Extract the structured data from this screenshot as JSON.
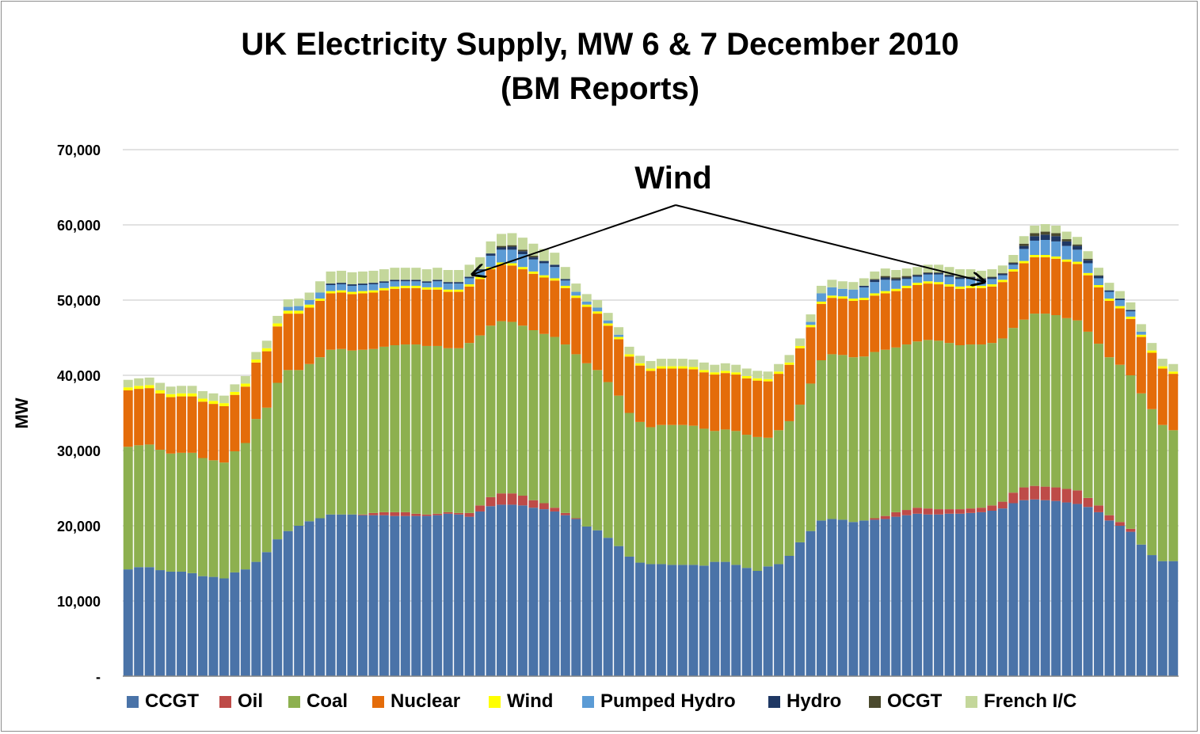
{
  "chart_data": {
    "type": "bar",
    "stacked": true,
    "title": "UK Electricity Supply, MW 6 & 7 December 2010",
    "subtitle": "(BM Reports)",
    "xlabel": "",
    "ylabel": "MW",
    "ylim": [
      0,
      70000
    ],
    "yticks": [
      {
        "value": 0,
        "label": "-"
      },
      {
        "value": 10000,
        "label": "10,000"
      },
      {
        "value": 20000,
        "label": "20,000"
      },
      {
        "value": 30000,
        "label": "30,000"
      },
      {
        "value": 40000,
        "label": "40,000"
      },
      {
        "value": 50000,
        "label": "50,000"
      },
      {
        "value": 60000,
        "label": "60,000"
      },
      {
        "value": 70000,
        "label": "70,000"
      }
    ],
    "grid": true,
    "legend_position": "bottom",
    "annotation": {
      "text": "Wind",
      "targets": [
        33,
        81
      ]
    },
    "series": [
      {
        "name": "CCGT",
        "color": "#4a73a8",
        "values": [
          14200,
          14500,
          14500,
          14100,
          13900,
          13900,
          13700,
          13300,
          13200,
          13000,
          13800,
          14200,
          15200,
          16500,
          18200,
          19300,
          20000,
          20600,
          21000,
          21500,
          21500,
          21500,
          21400,
          21400,
          21400,
          21300,
          21300,
          21300,
          21300,
          21400,
          21600,
          21500,
          21200,
          21900,
          22600,
          22800,
          22800,
          22700,
          22400,
          22200,
          21900,
          21400,
          20900,
          19900,
          19400,
          18400,
          17300,
          15900,
          15100,
          14900,
          14900,
          14800,
          14800,
          14800,
          14700,
          15200,
          15200,
          14800,
          14400,
          14000,
          14600,
          14900,
          16000,
          17800,
          19300,
          20700,
          20900,
          20800,
          20500,
          20700,
          20800,
          20900,
          21200,
          21400,
          21600,
          21500,
          21500,
          21600,
          21600,
          21700,
          21800,
          22000,
          22300,
          23000,
          23400,
          23500,
          23400,
          23300,
          23100,
          22900,
          22500,
          21800,
          20700,
          20000,
          19200,
          17500,
          16100,
          15300,
          15300
        ]
      },
      {
        "name": "Oil",
        "color": "#be4b48",
        "values": [
          0,
          0,
          0,
          0,
          0,
          0,
          0,
          0,
          0,
          0,
          0,
          0,
          0,
          0,
          0,
          0,
          0,
          0,
          0,
          0,
          0,
          0,
          100,
          300,
          400,
          500,
          500,
          300,
          200,
          200,
          200,
          200,
          500,
          800,
          1200,
          1500,
          1500,
          1300,
          1000,
          800,
          500,
          300,
          100,
          0,
          0,
          0,
          0,
          0,
          0,
          0,
          0,
          0,
          0,
          0,
          0,
          0,
          0,
          0,
          0,
          0,
          0,
          0,
          0,
          0,
          0,
          0,
          0,
          0,
          0,
          0,
          200,
          400,
          600,
          700,
          800,
          800,
          700,
          600,
          600,
          600,
          600,
          700,
          900,
          1400,
          1700,
          1800,
          1800,
          1800,
          1800,
          1800,
          1200,
          900,
          700,
          500,
          400,
          0,
          0,
          0,
          0
        ]
      },
      {
        "name": "Coal",
        "color": "#8db04f",
        "values": [
          16300,
          16200,
          16300,
          16000,
          15700,
          15800,
          16000,
          15700,
          15500,
          15400,
          16100,
          16800,
          19000,
          19200,
          20800,
          21400,
          20700,
          20900,
          21400,
          21900,
          22000,
          21800,
          21900,
          21800,
          22000,
          22200,
          22300,
          22500,
          22400,
          22300,
          21800,
          21900,
          22600,
          22600,
          22800,
          22900,
          22800,
          22600,
          22600,
          22500,
          22700,
          22400,
          21800,
          21700,
          21300,
          20700,
          20000,
          19100,
          18700,
          18200,
          18500,
          18600,
          18600,
          18500,
          18200,
          17400,
          17600,
          17800,
          17700,
          17800,
          17100,
          17800,
          17900,
          18300,
          19600,
          21300,
          21900,
          21900,
          21900,
          21800,
          22100,
          22100,
          21900,
          22000,
          22100,
          22400,
          22400,
          22100,
          21800,
          21800,
          21700,
          21600,
          21700,
          21900,
          22300,
          22900,
          23000,
          22900,
          22700,
          22600,
          22100,
          21500,
          21000,
          20900,
          20400,
          20100,
          19400,
          18100,
          17400
        ]
      },
      {
        "name": "Nuclear",
        "color": "#e46c0a",
        "values": [
          7500,
          7500,
          7500,
          7500,
          7500,
          7500,
          7500,
          7500,
          7500,
          7500,
          7500,
          7500,
          7500,
          7500,
          7500,
          7500,
          7500,
          7500,
          7500,
          7500,
          7500,
          7500,
          7500,
          7500,
          7500,
          7500,
          7500,
          7500,
          7500,
          7500,
          7500,
          7500,
          7500,
          7500,
          7500,
          7500,
          7500,
          7500,
          7500,
          7500,
          7500,
          7500,
          7500,
          7500,
          7500,
          7500,
          7500,
          7500,
          7500,
          7500,
          7500,
          7500,
          7500,
          7500,
          7500,
          7500,
          7500,
          7500,
          7500,
          7500,
          7500,
          7500,
          7500,
          7500,
          7500,
          7500,
          7500,
          7500,
          7500,
          7500,
          7500,
          7500,
          7500,
          7500,
          7500,
          7500,
          7500,
          7500,
          7500,
          7500,
          7500,
          7500,
          7500,
          7500,
          7500,
          7500,
          7500,
          7500,
          7500,
          7500,
          7500,
          7500,
          7500,
          7500,
          7500,
          7500,
          7500,
          7500,
          7500
        ]
      },
      {
        "name": "Wind",
        "color": "#ffff00",
        "values": [
          400,
          400,
          400,
          400,
          400,
          400,
          400,
          400,
          400,
          400,
          400,
          400,
          400,
          400,
          400,
          400,
          400,
          400,
          300,
          300,
          300,
          300,
          300,
          300,
          300,
          300,
          300,
          300,
          300,
          300,
          300,
          300,
          300,
          300,
          300,
          300,
          300,
          300,
          300,
          300,
          300,
          300,
          300,
          300,
          300,
          300,
          300,
          300,
          300,
          300,
          300,
          300,
          300,
          300,
          300,
          300,
          300,
          300,
          300,
          300,
          300,
          300,
          300,
          300,
          300,
          300,
          300,
          300,
          300,
          300,
          300,
          300,
          300,
          300,
          300,
          300,
          300,
          300,
          300,
          300,
          300,
          300,
          300,
          300,
          300,
          300,
          300,
          300,
          300,
          300,
          300,
          300,
          300,
          300,
          300,
          300,
          300,
          300,
          300
        ]
      },
      {
        "name": "Pumped Hydro",
        "color": "#5b9bd5",
        "values": [
          0,
          0,
          0,
          0,
          0,
          0,
          0,
          0,
          0,
          0,
          0,
          0,
          0,
          0,
          0,
          500,
          600,
          600,
          800,
          800,
          800,
          800,
          800,
          800,
          700,
          700,
          600,
          600,
          600,
          800,
          800,
          800,
          800,
          800,
          1500,
          1700,
          1800,
          1700,
          1600,
          1600,
          1500,
          700,
          500,
          400,
          500,
          400,
          300,
          0,
          0,
          0,
          0,
          0,
          0,
          0,
          0,
          0,
          0,
          0,
          0,
          0,
          0,
          0,
          0,
          0,
          400,
          1100,
          1100,
          1000,
          1200,
          1400,
          1500,
          1500,
          1100,
          900,
          800,
          900,
          1000,
          1000,
          1000,
          900,
          700,
          700,
          600,
          600,
          1600,
          1900,
          2000,
          2000,
          1800,
          1600,
          1300,
          900,
          900,
          800,
          700,
          400,
          0,
          0,
          0
        ]
      },
      {
        "name": "Hydro",
        "color": "#1f3864",
        "values": [
          0,
          0,
          0,
          0,
          0,
          0,
          0,
          0,
          0,
          0,
          0,
          0,
          0,
          0,
          0,
          0,
          0,
          0,
          0,
          200,
          200,
          200,
          200,
          200,
          200,
          200,
          200,
          200,
          200,
          200,
          200,
          200,
          200,
          200,
          300,
          300,
          400,
          400,
          300,
          300,
          300,
          200,
          0,
          0,
          0,
          0,
          0,
          0,
          0,
          0,
          0,
          0,
          0,
          0,
          0,
          0,
          0,
          0,
          0,
          0,
          0,
          0,
          0,
          0,
          0,
          0,
          0,
          0,
          0,
          200,
          300,
          300,
          200,
          200,
          200,
          200,
          200,
          200,
          200,
          200,
          200,
          200,
          200,
          200,
          400,
          600,
          700,
          700,
          600,
          500,
          400,
          300,
          200,
          200,
          200,
          0,
          0,
          0,
          0
        ]
      },
      {
        "name": "OCGT",
        "color": "#4b4a2e",
        "values": [
          0,
          0,
          0,
          0,
          0,
          0,
          0,
          0,
          0,
          0,
          0,
          0,
          0,
          0,
          0,
          0,
          0,
          0,
          0,
          0,
          0,
          0,
          0,
          0,
          0,
          0,
          0,
          0,
          0,
          0,
          0,
          0,
          0,
          0,
          0,
          200,
          200,
          200,
          200,
          0,
          0,
          0,
          0,
          0,
          0,
          0,
          0,
          0,
          0,
          0,
          0,
          0,
          0,
          0,
          0,
          0,
          0,
          0,
          0,
          0,
          0,
          0,
          0,
          0,
          0,
          0,
          0,
          0,
          0,
          0,
          100,
          200,
          200,
          200,
          100,
          100,
          100,
          100,
          100,
          100,
          100,
          100,
          100,
          100,
          300,
          400,
          400,
          400,
          300,
          200,
          200,
          100,
          0,
          0,
          0,
          0,
          0,
          0,
          0
        ]
      },
      {
        "name": "French I/C",
        "color": "#c4d79b",
        "values": [
          1000,
          1000,
          1000,
          1000,
          1000,
          1000,
          1000,
          1000,
          1000,
          1000,
          1000,
          1000,
          1000,
          1000,
          1000,
          1000,
          1000,
          1000,
          1500,
          1600,
          1600,
          1600,
          1600,
          1600,
          1600,
          1600,
          1600,
          1600,
          1600,
          1600,
          1600,
          1600,
          1600,
          1600,
          1600,
          1600,
          1600,
          1600,
          1600,
          1600,
          1600,
          1600,
          1100,
          1000,
          1000,
          1000,
          1000,
          1000,
          1000,
          1000,
          1000,
          1000,
          1000,
          1000,
          1000,
          1000,
          1000,
          1000,
          1000,
          1000,
          1000,
          1000,
          1000,
          1000,
          1000,
          1000,
          1000,
          1000,
          1000,
          1000,
          1000,
          1000,
          1000,
          1000,
          1000,
          1000,
          1000,
          1000,
          1000,
          1000,
          1000,
          1000,
          1000,
          1000,
          1000,
          1000,
          1000,
          1000,
          1000,
          1000,
          1000,
          1000,
          1000,
          1000,
          1000,
          1000,
          1000,
          1000,
          1000
        ]
      }
    ]
  }
}
